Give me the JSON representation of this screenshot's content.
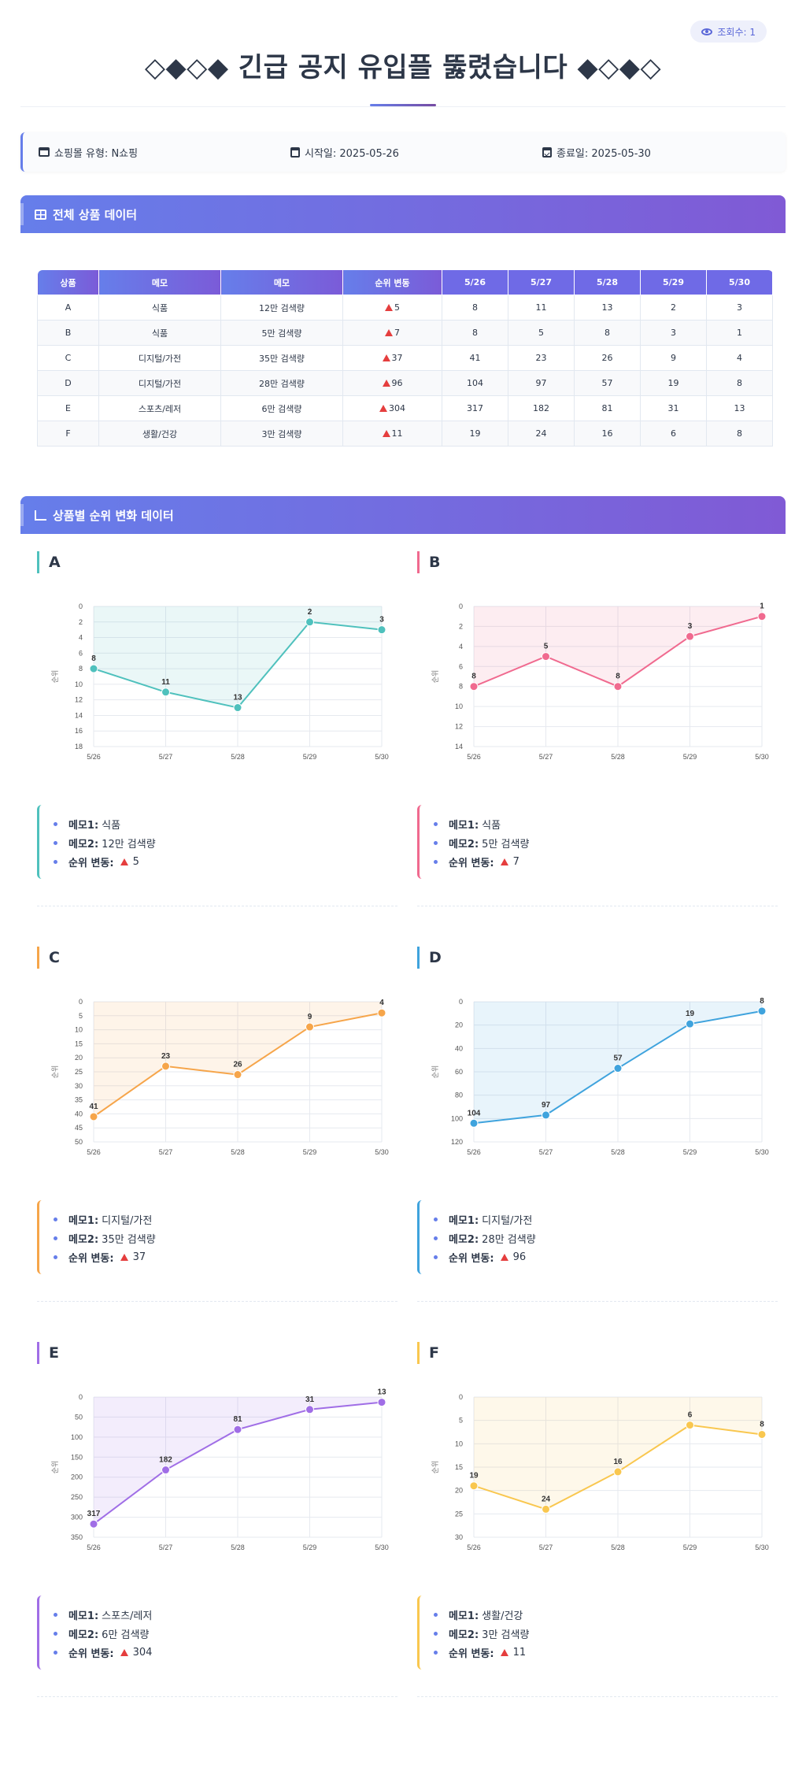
{
  "header": {
    "views_label": "조회수: 1",
    "title": "◇◆◇◆ 긴급 공지 유입플 뚫렸습니다 ◆◇◆◇"
  },
  "info": {
    "mall": "쇼핑몰 유형: N쇼핑",
    "start": "시작일: 2025-05-26",
    "end": "종료일: 2025-05-30"
  },
  "sections": {
    "table_title": "전체 상품 데이터",
    "charts_title": "상품별 순위 변화 데이터"
  },
  "table": {
    "headers": [
      "상품",
      "메모",
      "메모",
      "순위 변동",
      "5/26",
      "5/27",
      "5/28",
      "5/29",
      "5/30"
    ],
    "rows": [
      [
        "A",
        "식품",
        "12만 검색량",
        "5",
        "8",
        "11",
        "13",
        "2",
        "3"
      ],
      [
        "B",
        "식품",
        "5만 검색량",
        "7",
        "8",
        "5",
        "8",
        "3",
        "1"
      ],
      [
        "C",
        "디지털/가전",
        "35만 검색량",
        "37",
        "41",
        "23",
        "26",
        "9",
        "4"
      ],
      [
        "D",
        "디지털/가전",
        "28만 검색량",
        "96",
        "104",
        "97",
        "57",
        "19",
        "8"
      ],
      [
        "E",
        "스포츠/레저",
        "6만 검색량",
        "304",
        "317",
        "182",
        "81",
        "31",
        "13"
      ],
      [
        "F",
        "생활/건강",
        "3만 검색량",
        "11",
        "19",
        "24",
        "16",
        "6",
        "8"
      ]
    ]
  },
  "memo_labels": {
    "memo1": "메모1:",
    "memo2": "메모2:",
    "change": "순위 변동:"
  },
  "chart_data": [
    {
      "type": "line",
      "title": "A",
      "ylabel": "순위",
      "x": [
        "5/26",
        "5/27",
        "5/28",
        "5/29",
        "5/30"
      ],
      "values": [
        8,
        11,
        13,
        2,
        3
      ],
      "ylim": [
        0,
        18
      ],
      "yticks": [
        0,
        2,
        4,
        6,
        8,
        10,
        12,
        14,
        16,
        18
      ],
      "y_inverted": true,
      "grid": true,
      "color": "#4fc1bd",
      "memo1": "식품",
      "memo2": "12만 검색량",
      "change": "5"
    },
    {
      "type": "line",
      "title": "B",
      "ylabel": "순위",
      "x": [
        "5/26",
        "5/27",
        "5/28",
        "5/29",
        "5/30"
      ],
      "values": [
        8,
        5,
        8,
        3,
        1
      ],
      "ylim": [
        0,
        14
      ],
      "yticks": [
        0,
        2,
        4,
        6,
        8,
        10,
        12,
        14
      ],
      "y_inverted": true,
      "grid": true,
      "color": "#f06a8f",
      "memo1": "식품",
      "memo2": "5만 검색량",
      "change": "7"
    },
    {
      "type": "line",
      "title": "C",
      "ylabel": "순위",
      "x": [
        "5/26",
        "5/27",
        "5/28",
        "5/29",
        "5/30"
      ],
      "values": [
        41,
        23,
        26,
        9,
        4
      ],
      "ylim": [
        0,
        50
      ],
      "yticks": [
        0,
        5,
        10,
        15,
        20,
        25,
        30,
        35,
        40,
        45,
        50
      ],
      "y_inverted": true,
      "grid": true,
      "color": "#f6a54a",
      "memo1": "디지털/가전",
      "memo2": "35만 검색량",
      "change": "37"
    },
    {
      "type": "line",
      "title": "D",
      "ylabel": "순위",
      "x": [
        "5/26",
        "5/27",
        "5/28",
        "5/29",
        "5/30"
      ],
      "values": [
        104,
        97,
        57,
        19,
        8
      ],
      "ylim": [
        0,
        120
      ],
      "yticks": [
        0,
        20,
        40,
        60,
        80,
        100,
        120
      ],
      "y_inverted": true,
      "grid": true,
      "color": "#3fa3dd",
      "memo1": "디지털/가전",
      "memo2": "28만 검색량",
      "change": "96"
    },
    {
      "type": "line",
      "title": "E",
      "ylabel": "순위",
      "x": [
        "5/26",
        "5/27",
        "5/28",
        "5/29",
        "5/30"
      ],
      "values": [
        317,
        182,
        81,
        31,
        13
      ],
      "ylim": [
        0,
        350
      ],
      "yticks": [
        0,
        50,
        100,
        150,
        200,
        250,
        300,
        350
      ],
      "y_inverted": true,
      "grid": true,
      "color": "#a06ee6",
      "memo1": "스포츠/레저",
      "memo2": "6만 검색량",
      "change": "304"
    },
    {
      "type": "line",
      "title": "F",
      "ylabel": "순위",
      "x": [
        "5/26",
        "5/27",
        "5/28",
        "5/29",
        "5/30"
      ],
      "values": [
        19,
        24,
        16,
        6,
        8
      ],
      "ylim": [
        0,
        30
      ],
      "yticks": [
        0,
        5,
        10,
        15,
        20,
        25,
        30
      ],
      "y_inverted": true,
      "grid": true,
      "color": "#f9c74f",
      "memo1": "생활/건강",
      "memo2": "3만 검색량",
      "change": "11"
    }
  ],
  "colors": {
    "accent_start": "#667eea",
    "accent_end": "#805ad5",
    "rank_up": "#e53e3e"
  }
}
